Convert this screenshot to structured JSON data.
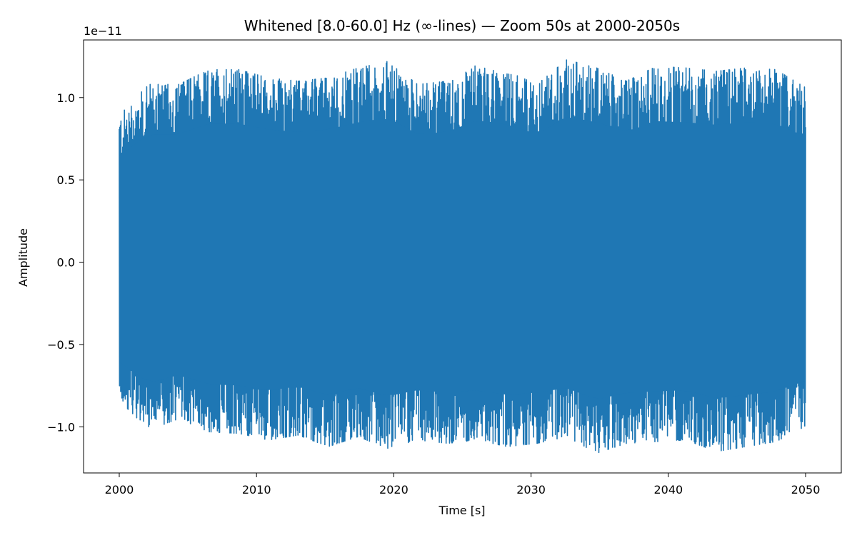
{
  "chart_data": {
    "type": "line",
    "title": "Whitened [8.0-60.0] Hz (∞-lines) — Zoom 50s at 2000-2050s",
    "xlabel": "Time [s]",
    "ylabel": "Amplitude",
    "offset_text": "1e−11",
    "xlim": [
      1997.4,
      2052.6
    ],
    "ylim": [
      -1.28,
      1.35
    ],
    "xticks": [
      2000,
      2010,
      2020,
      2030,
      2040,
      2050
    ],
    "xtick_labels": [
      "2000",
      "2010",
      "2020",
      "2030",
      "2040",
      "2050"
    ],
    "yticks": [
      -1.0,
      -0.5,
      0.0,
      0.5,
      1.0
    ],
    "ytick_labels": [
      "−1.0",
      "−0.5",
      "0.0",
      "0.5",
      "1.0"
    ],
    "y_scale_factor": 1e-11,
    "series": [
      {
        "color": "#1f77b4",
        "x_range": [
          2000,
          2050
        ],
        "envelope_upper": [
          0.9,
          1.08,
          1.08,
          1.17,
          1.17,
          1.12,
          1.1,
          1.12,
          1.18,
          1.22,
          1.08,
          1.1,
          1.2,
          1.16,
          1.08,
          1.23,
          1.18,
          1.1,
          1.19,
          1.18,
          1.16,
          1.18,
          1.17,
          1.06
        ],
        "envelope_lower": [
          -0.84,
          -1.02,
          -0.95,
          -1.03,
          -1.04,
          -1.08,
          -1.05,
          -1.12,
          -1.06,
          -1.13,
          -1.08,
          -1.1,
          -1.08,
          -1.12,
          -1.1,
          -1.06,
          -1.16,
          -1.1,
          -1.09,
          -1.08,
          -1.15,
          -1.12,
          -1.09,
          -1.0
        ],
        "peak_max": 1.23,
        "peak_min": -1.16
      }
    ]
  }
}
